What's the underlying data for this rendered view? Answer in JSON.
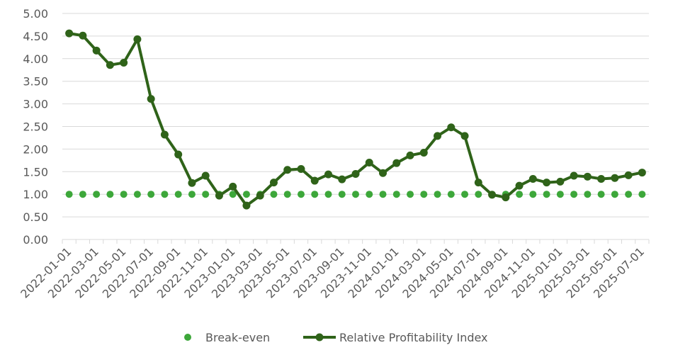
{
  "chart_data": {
    "type": "line",
    "x": [
      "2022-01-01",
      "2022-02-01",
      "2022-03-01",
      "2022-04-01",
      "2022-05-01",
      "2022-06-01",
      "2022-07-01",
      "2022-08-01",
      "2022-09-01",
      "2022-10-01",
      "2022-11-01",
      "2022-12-01",
      "2023-01-01",
      "2023-02-01",
      "2023-03-01",
      "2023-04-01",
      "2023-05-01",
      "2023-06-01",
      "2023-07-01",
      "2023-08-01",
      "2023-09-01",
      "2023-10-01",
      "2023-11-01",
      "2023-12-01",
      "2024-01-01",
      "2024-02-01",
      "2024-03-01",
      "2024-04-01",
      "2024-05-01",
      "2024-06-01",
      "2024-07-01",
      "2024-08-01",
      "2024-09-01",
      "2024-10-01",
      "2024-11-01",
      "2024-12-01",
      "2025-01-01",
      "2025-02-01",
      "2025-03-01",
      "2025-04-01",
      "2025-05-01",
      "2025-06-01",
      "2025-07-01"
    ],
    "x_tick_labels": [
      "2022-01-01",
      "2022-03-01",
      "2022-05-01",
      "2022-07-01",
      "2022-09-01",
      "2022-11-01",
      "2023-01-01",
      "2023-03-01",
      "2023-05-01",
      "2023-07-01",
      "2023-09-01",
      "2023-11-01",
      "2024-01-01",
      "2024-03-01",
      "2024-05-01",
      "2024-07-01",
      "2024-09-01",
      "2024-11-01",
      "2025-01-01",
      "2025-03-01",
      "2025-05-01",
      "2025-07-01"
    ],
    "y_tick_labels": [
      "0.00",
      "0.50",
      "1.00",
      "1.50",
      "2.00",
      "2.50",
      "3.00",
      "3.50",
      "4.00",
      "4.50",
      "5.00"
    ],
    "series": [
      {
        "name": "Break-even",
        "style": "dots",
        "color": "#3da73a",
        "values": [
          1,
          1,
          1,
          1,
          1,
          1,
          1,
          1,
          1,
          1,
          1,
          1,
          1,
          1,
          1,
          1,
          1,
          1,
          1,
          1,
          1,
          1,
          1,
          1,
          1,
          1,
          1,
          1,
          1,
          1,
          1,
          1,
          1,
          1,
          1,
          1,
          1,
          1,
          1,
          1,
          1,
          1,
          1
        ]
      },
      {
        "name": "Relative Profitability Index",
        "style": "line-markers",
        "color": "#2f6319",
        "values": [
          4.56,
          4.51,
          4.18,
          3.86,
          3.91,
          4.43,
          3.11,
          2.32,
          1.88,
          1.25,
          1.41,
          0.97,
          1.17,
          0.75,
          0.97,
          1.26,
          1.54,
          1.56,
          1.3,
          1.44,
          1.33,
          1.45,
          1.7,
          1.47,
          1.69,
          1.86,
          1.92,
          2.29,
          2.48,
          2.29,
          1.26,
          0.99,
          0.93,
          1.19,
          1.34,
          1.26,
          1.28,
          1.41,
          1.39,
          1.34,
          1.36,
          1.42,
          1.48
        ]
      }
    ],
    "ylim": [
      0,
      5
    ],
    "grid": true,
    "legend_position": "bottom",
    "title": "",
    "xlabel": "",
    "ylabel": ""
  }
}
